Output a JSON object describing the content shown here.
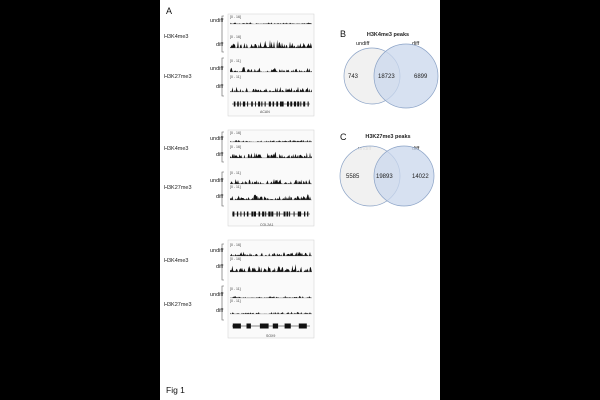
{
  "figure": {
    "label": "Fig 1",
    "panels": {
      "a": "A",
      "b": "B",
      "c": "C"
    }
  },
  "panel_a": {
    "blocks": [
      {
        "gene": "ACAN",
        "groups": [
          {
            "mark": "H3K4me3",
            "tracks": [
              {
                "label": "undiff",
                "scale": "[0 - 16]"
              },
              {
                "label": "diff",
                "scale": "[0 - 16]"
              }
            ]
          },
          {
            "mark": "H3K27me3",
            "tracks": [
              {
                "label": "undiff",
                "scale": "[0 - 11]"
              },
              {
                "label": "diff",
                "scale": "[0 - 11]"
              }
            ]
          }
        ]
      },
      {
        "gene": "COL2A1",
        "groups": [
          {
            "mark": "H3K4me3",
            "tracks": [
              {
                "label": "undiff",
                "scale": "[0 - 16]"
              },
              {
                "label": "diff",
                "scale": "[0 - 16]"
              }
            ]
          },
          {
            "mark": "H3K27me3",
            "tracks": [
              {
                "label": "undiff",
                "scale": "[0 - 11]"
              },
              {
                "label": "diff",
                "scale": "[0 - 11]"
              }
            ]
          }
        ]
      },
      {
        "gene": "SOX9",
        "groups": [
          {
            "mark": "H3K4me3",
            "tracks": [
              {
                "label": "undiff",
                "scale": "[0 - 16]"
              },
              {
                "label": "diff",
                "scale": "[0 - 16]"
              }
            ]
          },
          {
            "mark": "H3K27me3",
            "tracks": [
              {
                "label": "undiff",
                "scale": "[0 - 11]"
              },
              {
                "label": "diff",
                "scale": "[0 - 11]"
              }
            ]
          }
        ]
      }
    ]
  },
  "venn_b": {
    "title": "H3K4me3 peaks",
    "set_left": "undiff",
    "set_right": "diff",
    "only_left": "743",
    "overlap": "18723",
    "only_right": "6899"
  },
  "venn_c": {
    "title": "H3K27me3 peaks",
    "set_left": "undiff",
    "set_right": "diff",
    "only_left": "5585",
    "overlap": "19893",
    "only_right": "14022"
  },
  "colors": {
    "venn_left_fill": "#efefef",
    "venn_right_fill": "#c9d7ec",
    "venn_stroke": "#8aa2c6",
    "signal": "#111111",
    "track_bg": "#f3f3f3"
  }
}
